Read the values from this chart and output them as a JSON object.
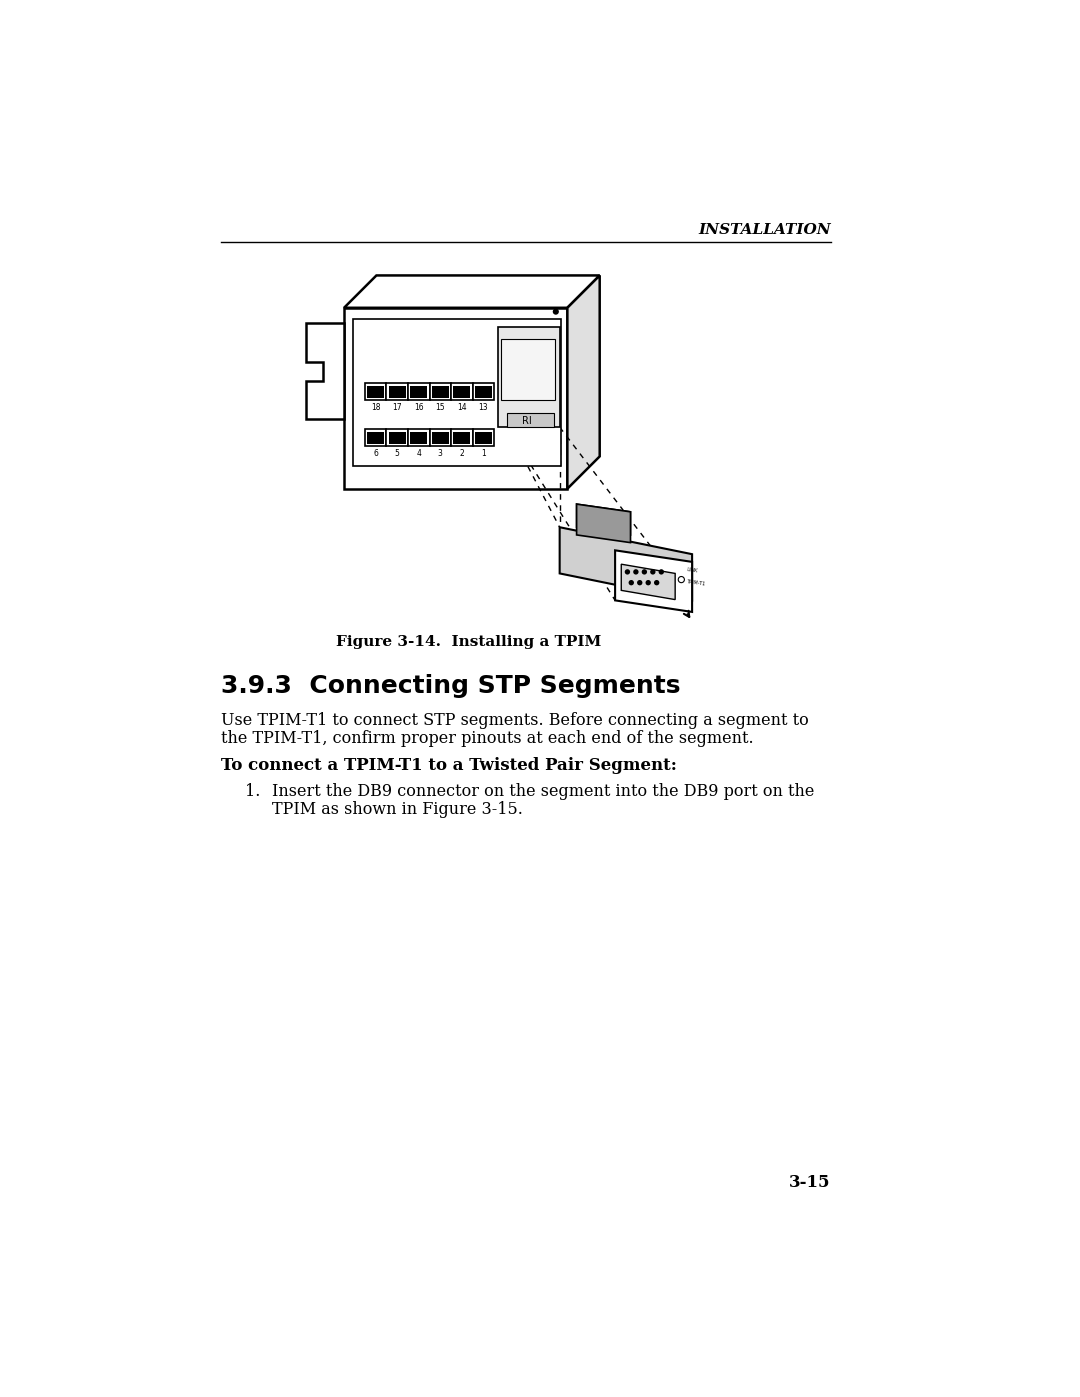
{
  "bg_color": "#ffffff",
  "header_text": "INSTALLATION",
  "figure_caption": "Figure 3-14.  Installing a TPIM",
  "section_heading": "3.9.3  Connecting STP Segments",
  "body_text_line1": "Use TPIM-T1 to connect STP segments. Before connecting a segment to",
  "body_text_line2": "the TPIM-T1, confirm proper pinouts at each end of the segment.",
  "subheading": "To connect a TPIM-T1 to a Twisted Pair Segment:",
  "step1_line1": "Insert the DB9 connector on the segment into the DB9 port on the",
  "step1_line2": "TPIM as shown in Figure 3-15.",
  "page_number": "3-15",
  "top_port_nums": [
    "18",
    "17",
    "16",
    "15",
    "14",
    "13"
  ],
  "bot_port_nums": [
    "6",
    "5",
    "4",
    "3",
    "2",
    "1"
  ]
}
